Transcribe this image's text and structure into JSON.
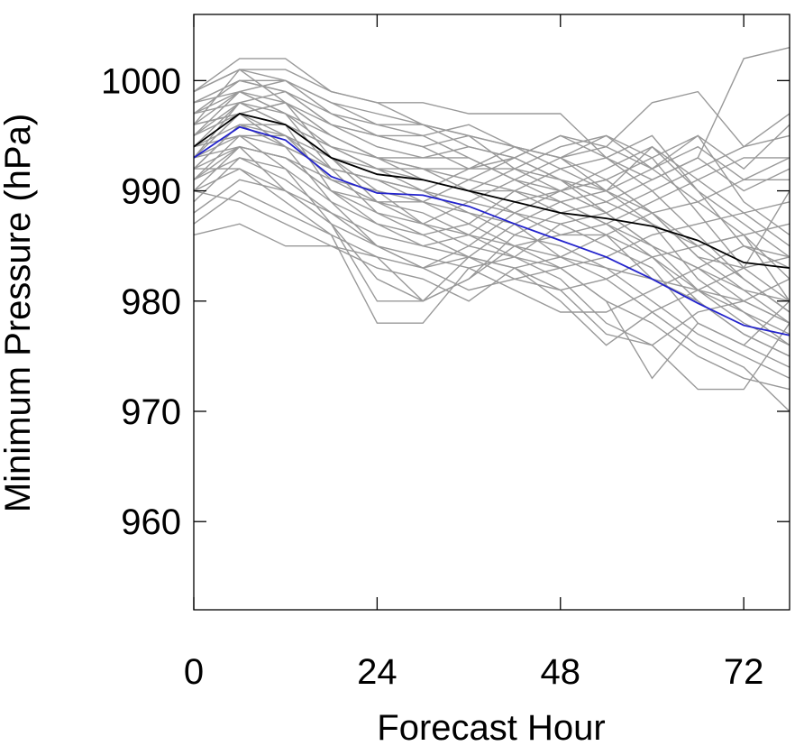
{
  "chart_data": {
    "type": "line",
    "xlabel": "Forecast Hour",
    "ylabel": "Minimum Pressure (hPa)",
    "xlim": [
      0,
      78
    ],
    "ylim": [
      952,
      1006
    ],
    "xticks": [
      0,
      24,
      48,
      72
    ],
    "yticks": [
      960,
      970,
      980,
      990,
      1000
    ],
    "grid": false,
    "x": [
      0,
      6,
      12,
      18,
      24,
      30,
      36,
      42,
      48,
      54,
      60,
      66,
      72,
      78
    ],
    "highlight_series": [
      {
        "color": "#000000",
        "values": [
          994,
          997,
          996,
          993,
          991.5,
          991,
          990,
          989,
          988,
          987.5,
          986.8,
          985.5,
          983.5,
          983
        ]
      },
      {
        "color": "#2222cc",
        "values": [
          993,
          995.8,
          994.6,
          991.3,
          989.8,
          989.6,
          988.6,
          987,
          985.5,
          984,
          982,
          979.8,
          977.8,
          976.9
        ]
      }
    ],
    "ensemble_color": "#999999",
    "ensemble_series": [
      [
        999,
        1002,
        1002,
        999,
        998,
        998,
        997,
        997,
        997,
        993,
        991,
        993,
        1002,
        1003
      ],
      [
        996,
        1001,
        1001,
        999,
        998,
        996,
        994,
        993,
        995,
        994,
        998,
        999,
        994,
        997
      ],
      [
        998,
        1000,
        999,
        997,
        996,
        996,
        995,
        994,
        993,
        995,
        992,
        995,
        989,
        986
      ],
      [
        995,
        999,
        998,
        996,
        995,
        995,
        996,
        994,
        993,
        990,
        994,
        990,
        985,
        984
      ],
      [
        997,
        999,
        1000,
        997,
        995,
        994,
        992,
        993,
        991,
        989,
        987,
        985,
        986,
        980
      ],
      [
        994,
        998,
        999,
        996,
        994,
        993,
        993,
        991,
        990,
        991,
        988,
        984,
        983,
        990
      ],
      [
        996,
        997,
        998,
        995,
        993,
        992,
        992,
        992,
        991,
        988,
        985,
        983,
        980,
        978
      ],
      [
        993,
        998,
        997,
        994,
        993,
        991,
        990,
        990,
        988,
        986,
        984,
        981,
        979,
        976
      ],
      [
        995,
        997,
        996,
        994,
        992,
        992,
        990,
        988,
        986,
        986,
        982,
        980,
        977,
        975
      ],
      [
        992,
        996,
        996,
        993,
        992,
        990,
        989,
        988,
        987,
        985,
        983,
        978,
        976,
        974
      ],
      [
        994,
        996,
        995,
        992,
        991,
        990,
        988,
        986,
        985,
        983,
        980,
        977,
        975,
        973
      ],
      [
        991,
        995,
        994,
        992,
        991,
        989,
        988,
        987,
        984,
        982,
        979,
        976,
        974,
        970
      ],
      [
        993,
        995,
        995,
        991,
        989,
        989,
        987,
        985,
        983,
        980,
        978,
        975,
        973,
        972
      ],
      [
        990,
        994,
        993,
        990,
        989,
        988,
        986,
        984,
        982,
        978,
        976,
        972,
        972,
        978
      ],
      [
        992,
        994,
        993,
        991,
        990,
        987,
        985,
        984,
        983,
        980,
        973,
        978,
        976,
        980
      ],
      [
        989,
        993,
        992,
        989,
        987,
        986,
        984,
        983,
        981,
        977,
        976,
        979,
        980,
        982
      ],
      [
        991,
        993,
        991,
        988,
        986,
        985,
        984,
        983,
        980,
        976,
        979,
        981,
        983,
        984
      ],
      [
        990,
        992,
        990,
        988,
        985,
        984,
        983,
        981,
        979,
        979,
        981,
        983,
        985,
        983
      ],
      [
        988,
        991,
        990,
        987,
        985,
        983,
        984,
        982,
        981,
        982,
        984,
        985,
        986,
        987
      ],
      [
        987,
        990,
        988,
        986,
        984,
        983,
        981,
        982,
        983,
        984,
        986,
        987,
        988,
        989
      ],
      [
        986,
        987,
        985,
        985,
        983,
        982,
        980,
        983,
        984,
        986,
        988,
        989,
        991,
        991
      ],
      [
        990,
        989,
        987,
        985,
        984,
        980,
        982,
        985,
        986,
        987,
        989,
        991,
        993,
        993
      ],
      [
        992,
        992,
        989,
        986,
        978,
        978,
        983,
        984,
        987,
        988,
        990,
        992,
        994,
        995
      ],
      [
        993,
        994,
        990,
        987,
        982,
        980,
        982,
        986,
        988,
        989,
        991,
        993,
        990,
        992
      ],
      [
        994,
        995,
        992,
        987,
        980,
        980,
        984,
        987,
        989,
        990,
        992,
        994,
        991,
        993
      ],
      [
        996,
        997,
        994,
        989,
        985,
        983,
        985,
        988,
        990,
        991,
        993,
        995,
        992,
        996
      ],
      [
        997,
        998,
        996,
        990,
        987,
        985,
        986,
        989,
        990,
        992,
        994,
        991,
        988,
        985
      ],
      [
        998,
        999,
        997,
        992,
        988,
        986,
        987,
        990,
        992,
        993,
        995,
        990,
        987,
        984
      ],
      [
        999,
        1001,
        998,
        993,
        989,
        987,
        989,
        991,
        993,
        994,
        992,
        989,
        986,
        982
      ],
      [
        995,
        998,
        996,
        994,
        992,
        991,
        990,
        992,
        994,
        995,
        993,
        988,
        983,
        980
      ],
      [
        993,
        997,
        995,
        993,
        990,
        989,
        991,
        993,
        995,
        993,
        990,
        986,
        982,
        979
      ],
      [
        992,
        996,
        994,
        992,
        991,
        990,
        992,
        994,
        993,
        991,
        988,
        984,
        981,
        978
      ],
      [
        996,
        999,
        997,
        995,
        993,
        993,
        994,
        993,
        991,
        990,
        987,
        982,
        979,
        977
      ],
      [
        997,
        1000,
        999,
        996,
        995,
        994,
        995,
        992,
        990,
        988,
        985,
        981,
        978,
        976
      ],
      [
        998,
        1000,
        1000,
        998,
        996,
        995,
        993,
        991,
        989,
        987,
        984,
        980,
        977,
        975
      ],
      [
        999,
        1001,
        1000,
        998,
        997,
        996,
        995,
        994,
        992,
        990,
        988,
        985,
        982,
        979
      ],
      [
        994,
        997,
        998,
        995,
        993,
        992,
        991,
        990,
        989,
        987,
        985,
        983,
        981,
        980
      ],
      [
        991,
        994,
        993,
        990,
        988,
        987,
        986,
        985,
        984,
        983,
        982,
        981,
        980,
        978
      ]
    ]
  }
}
